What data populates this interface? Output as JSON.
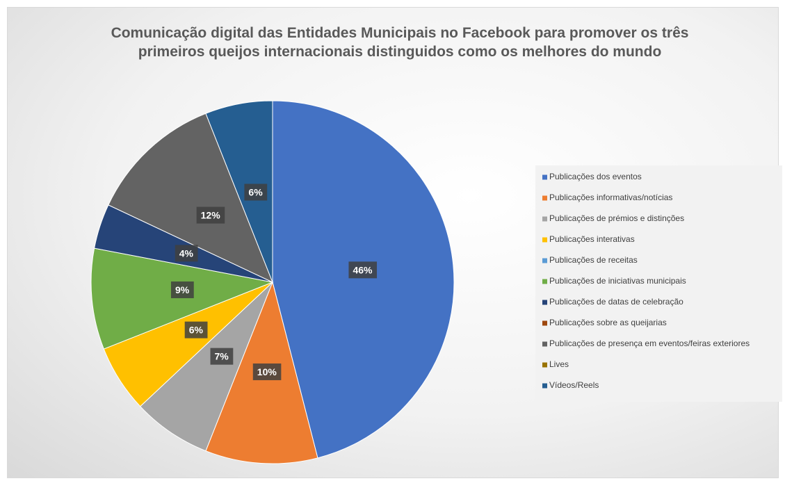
{
  "chart_data": {
    "type": "pie",
    "title": "Comunicação digital das Entidades Municipais no Facebook para promover os três primeiros queijos internacionais distinguidos como os melhores do mundo",
    "categories": [
      "Publicações dos eventos",
      "Publicações informativas/notícias",
      "Publicações de prémios e distinções",
      "Publicações interativas",
      "Publicações de receitas",
      "Publicações de iniciativas municipais",
      "Publicações de datas de celebração",
      "Publicações sobre as queijarias",
      "Publicações de presença em eventos/feiras exteriores",
      "Lives",
      "Vídeos/Reels"
    ],
    "values": [
      46,
      10,
      7,
      6,
      0,
      9,
      4,
      0,
      12,
      0,
      6
    ],
    "value_labels": [
      "46%",
      "10%",
      "7%",
      "6%",
      null,
      "9%",
      "4%",
      null,
      "12%",
      null,
      "6%"
    ],
    "colors": [
      "#4472c4",
      "#ed7d31",
      "#a5a5a5",
      "#ffc000",
      "#5b9bd5",
      "#70ad47",
      "#264478",
      "#9e480e",
      "#636363",
      "#997300",
      "#255e91"
    ],
    "legend": "right"
  }
}
